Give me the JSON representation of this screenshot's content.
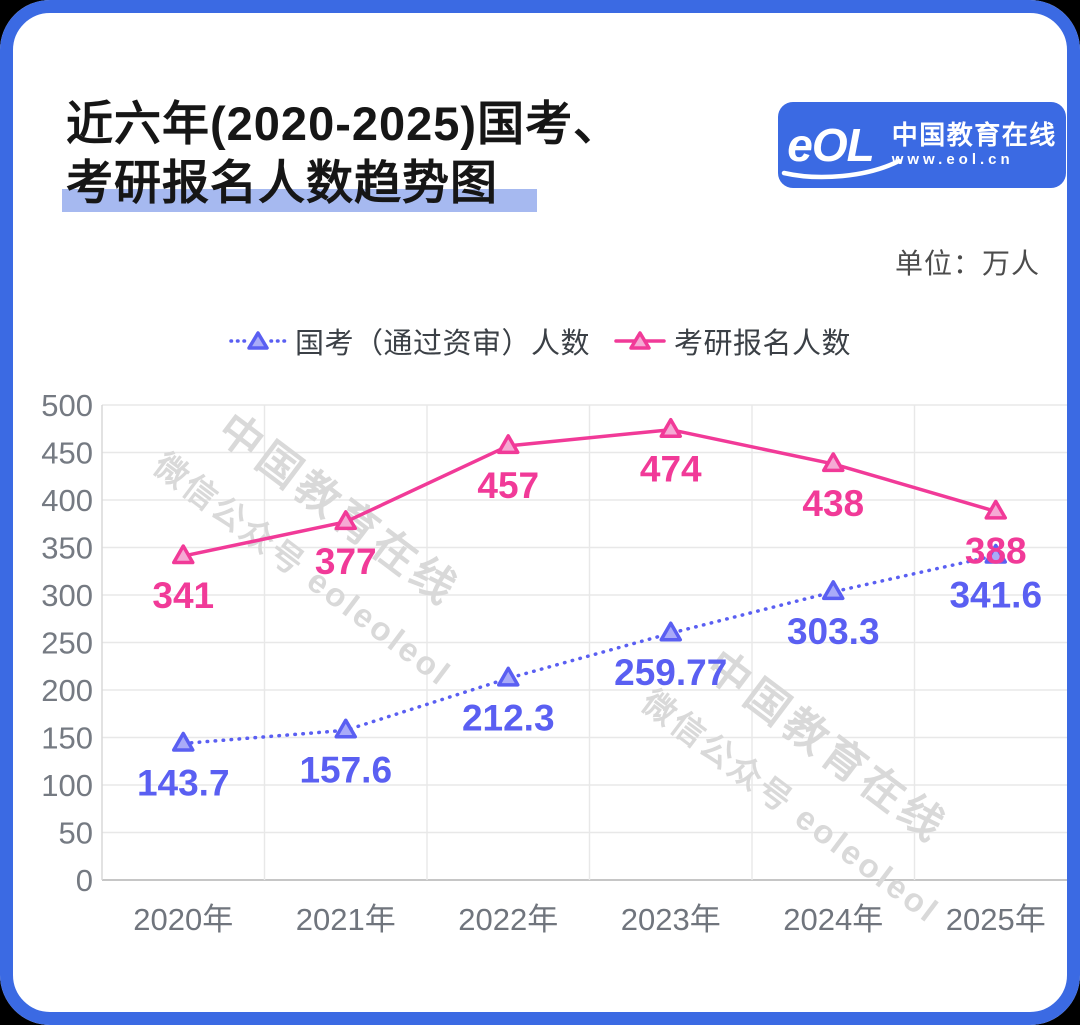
{
  "frame": {
    "border_color": "#3b6ae3"
  },
  "header": {
    "title_line1": "近六年(2020-2025)国考、",
    "title_line2": "考研报名人数趋势图",
    "highlight_color": "#a6b9f0",
    "unit_label": "单位：万人"
  },
  "logo": {
    "mark": "eOL",
    "name": "中国教育在线",
    "url": "www.eol.cn",
    "bg_color": "#3b6ae3"
  },
  "watermark": {
    "line1": "中国教育在线",
    "line2": "微信公众号 eoleoleol"
  },
  "chart_data": {
    "type": "line",
    "title": "近六年(2020-2025)国考、考研报名人数趋势图",
    "unit": "万人",
    "categories": [
      "2020年",
      "2021年",
      "2022年",
      "2023年",
      "2024年",
      "2025年"
    ],
    "series": [
      {
        "name": "国考（通过资审）人数",
        "values": [
          143.7,
          157.6,
          212.3,
          259.77,
          303.3,
          341.6
        ],
        "color": "#5a5ff2",
        "marker_fill": "#a9abf8",
        "line_style": "dotted",
        "marker": "triangle"
      },
      {
        "name": "考研报名人数",
        "values": [
          341,
          377,
          457,
          474,
          438,
          388
        ],
        "color": "#f13a98",
        "marker_fill": "#f5aad4",
        "line_style": "solid",
        "marker": "triangle"
      }
    ],
    "ylim": [
      0,
      500
    ],
    "ytick_step": 50,
    "grid": true,
    "legend_position": "top",
    "grid_color": "#e8e8e8",
    "axis_color": "#c6c6c6",
    "tick_label_color": "#757a82"
  }
}
